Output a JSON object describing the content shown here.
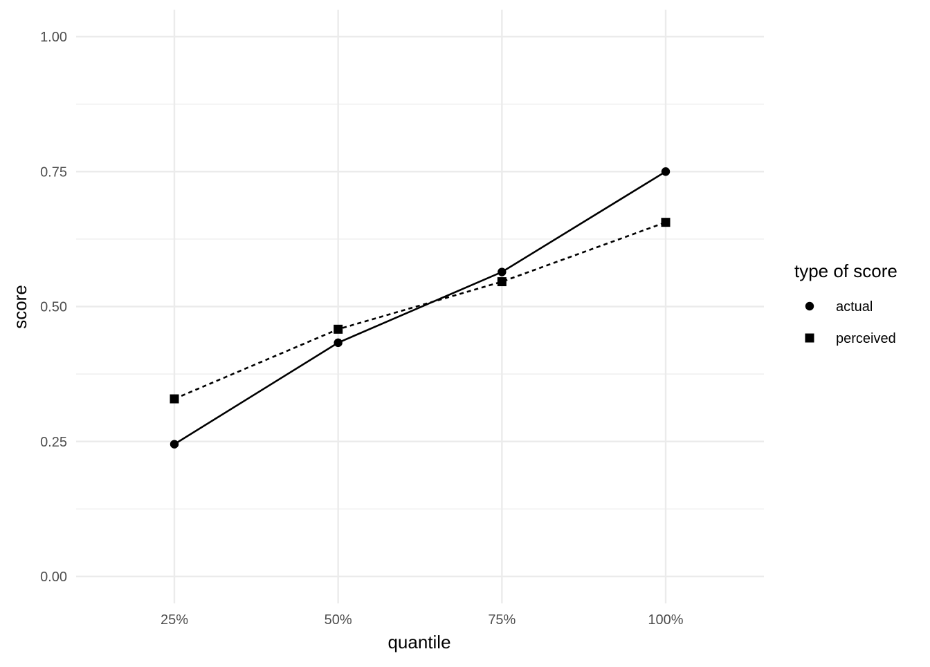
{
  "chart_data": {
    "type": "line",
    "categories": [
      "25%",
      "50%",
      "75%",
      "100%"
    ],
    "series": [
      {
        "name": "actual",
        "values": [
          0.245,
          0.433,
          0.564,
          0.75
        ],
        "marker": "circle",
        "line_style": "solid",
        "color": "#000000"
      },
      {
        "name": "perceived",
        "values": [
          0.329,
          0.458,
          0.546,
          0.656
        ],
        "marker": "square",
        "line_style": "dashed",
        "color": "#000000"
      }
    ],
    "xlabel": "quantile",
    "ylabel": "score",
    "ylim": [
      0,
      1
    ],
    "y_ticks": [
      "0.00",
      "0.25",
      "0.50",
      "0.75",
      "1.00"
    ],
    "y_tick_values": [
      0,
      0.25,
      0.5,
      0.75,
      1.0
    ],
    "legend": {
      "title": "type of score",
      "placement": "right"
    },
    "grid": true,
    "background": "#ffffff",
    "grid_color": "#ebebeb"
  }
}
